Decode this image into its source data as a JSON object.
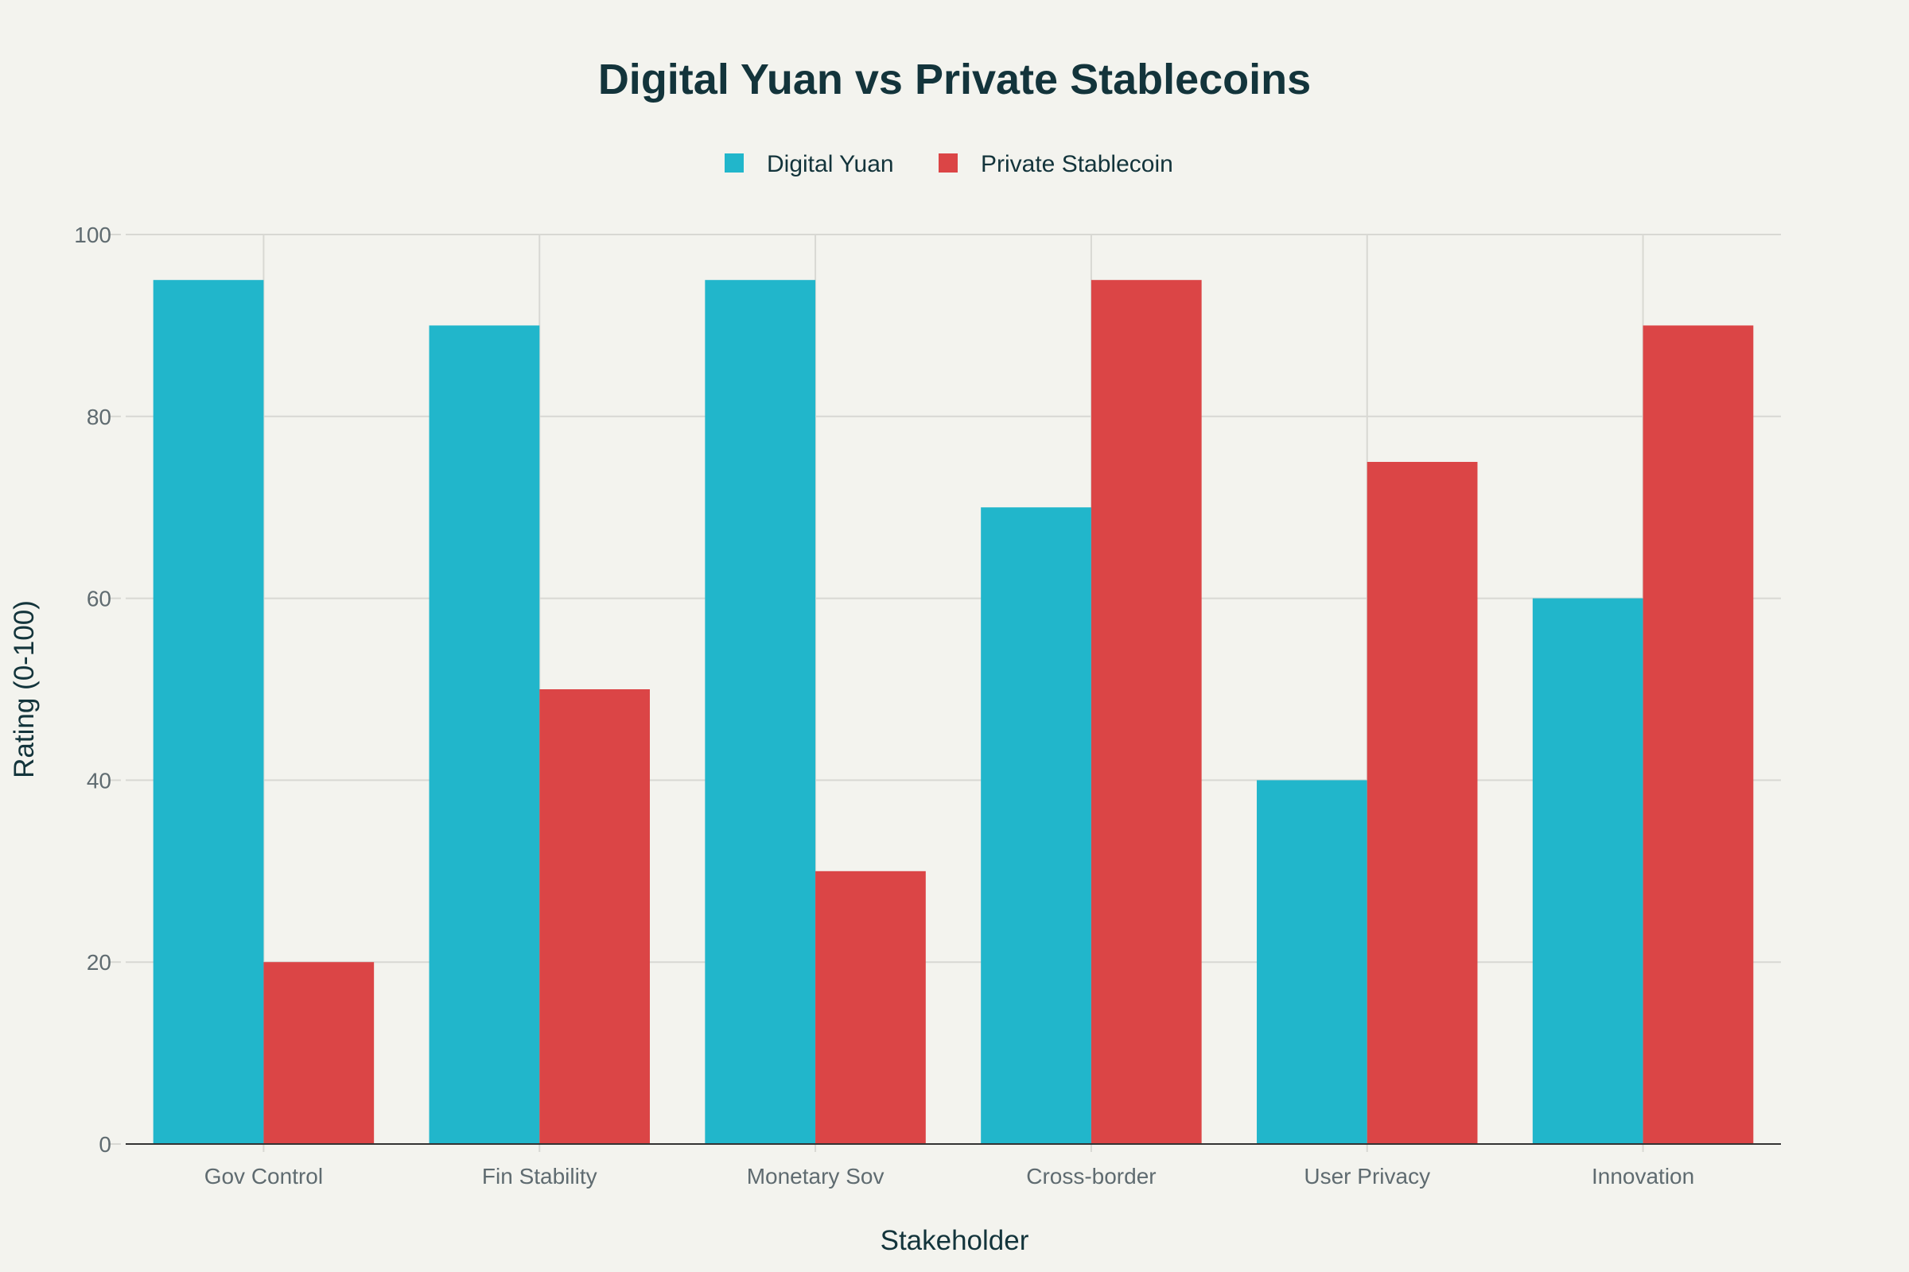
{
  "chart_data": {
    "type": "bar",
    "title": "Digital Yuan vs Private Stablecoins",
    "xlabel": "Stakeholder",
    "ylabel": "Rating (0-100)",
    "categories": [
      "Gov Control",
      "Fin Stability",
      "Monetary Sov",
      "Cross-border",
      "User Privacy",
      "Innovation"
    ],
    "series": [
      {
        "name": "Digital Yuan",
        "color": "#21b6cb",
        "values": [
          95,
          90,
          95,
          70,
          40,
          60
        ]
      },
      {
        "name": "Private Stablecoin",
        "color": "#db4546",
        "values": [
          20,
          50,
          30,
          95,
          75,
          90
        ]
      }
    ],
    "ylim": [
      0,
      100
    ],
    "yticks": [
      0,
      20,
      40,
      60,
      80,
      100
    ],
    "grid": true,
    "legend": "top-center",
    "background": "#f3f3ee"
  }
}
